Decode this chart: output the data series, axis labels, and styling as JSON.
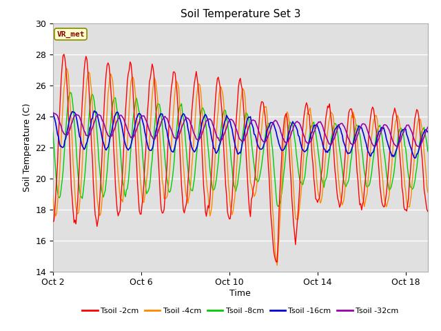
{
  "title": "Soil Temperature Set 3",
  "xlabel": "Time",
  "ylabel": "Soil Temperature (C)",
  "ylim": [
    14,
    30
  ],
  "xlim": [
    0,
    408
  ],
  "yticks": [
    14,
    16,
    18,
    20,
    22,
    24,
    26,
    28,
    30
  ],
  "xtick_positions": [
    0,
    96,
    192,
    288,
    384
  ],
  "xtick_labels": [
    "Oct 2",
    "Oct 6",
    "Oct 10",
    "Oct 14",
    "Oct 18"
  ],
  "bg_color": "#e0e0e0",
  "grid_color": "#ffffff",
  "annotation_text": "VR_met",
  "annotation_bg": "#ffffcc",
  "annotation_border": "#888800",
  "line_colors": {
    "tsoil_2cm": "#ff0000",
    "tsoil_4cm": "#ff8800",
    "tsoil_8cm": "#00cc00",
    "tsoil_16cm": "#0000dd",
    "tsoil_32cm": "#9900aa"
  },
  "legend_labels": [
    "Tsoil -2cm",
    "Tsoil -4cm",
    "Tsoil -8cm",
    "Tsoil -16cm",
    "Tsoil -32cm"
  ],
  "n_points": 409
}
